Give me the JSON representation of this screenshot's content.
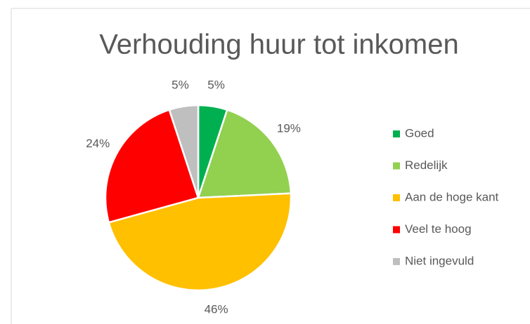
{
  "chart_data": {
    "type": "pie",
    "title": "Verhouding huur tot inkomen",
    "categories": [
      "Goed",
      "Redelijk",
      "Aan de hoge kant",
      "Veel te hoog",
      "Niet ingevuld"
    ],
    "values": [
      5,
      19,
      46,
      24,
      5
    ],
    "value_labels": [
      "5%",
      "19%",
      "46%",
      "24%",
      "5%"
    ],
    "colors": [
      "#00b050",
      "#92d050",
      "#ffc000",
      "#ff0000",
      "#bfbfbf"
    ],
    "legend": "right"
  }
}
